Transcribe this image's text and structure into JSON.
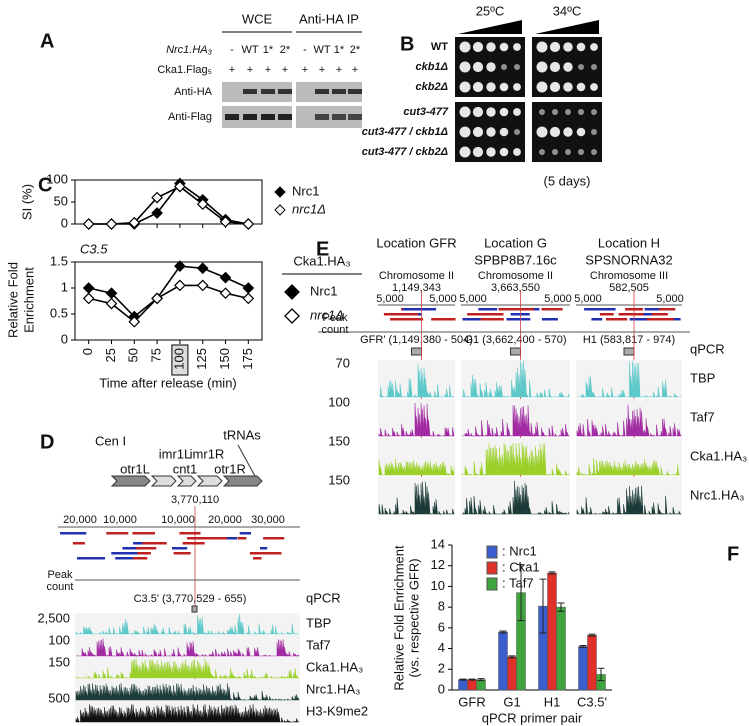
{
  "figure": {
    "A": {
      "label": "A",
      "headers": [
        "WCE",
        "Anti-HA IP"
      ],
      "row_labels": [
        "Nrc1.HA₃",
        "Cka1.Flag₅",
        "Anti-HA",
        "Anti-Flag"
      ],
      "nrc1_lanes": [
        "-",
        "WT",
        "1*",
        "2*",
        "-",
        "WT",
        "1*",
        "2*"
      ],
      "cka1_lanes": [
        "+",
        "+",
        "+",
        "+",
        "+",
        "+",
        "+",
        "+"
      ]
    },
    "B": {
      "label": "B",
      "temperatures": [
        "25ºC",
        "34ºC"
      ],
      "strains": [
        "WT",
        "ckb1Δ",
        "ckb2Δ",
        "cut3-477",
        "cut3-477 / ckb1Δ",
        "cut3-477 / ckb2Δ"
      ],
      "note": "(5 days)"
    },
    "C": {
      "label": "C"
    },
    "D": {
      "label": "D",
      "title": "Cen I",
      "elements": [
        "otr1L",
        "imr1L",
        "cnt1",
        "imr1R",
        "otr1R",
        "tRNAs"
      ],
      "position": "3,770,110",
      "scale": [
        "20,000",
        "10,000",
        "10,000",
        "20,000",
        "30,000"
      ],
      "peak_count": [
        "Peak",
        "count"
      ],
      "primer": "C3.5' (3,770,529 - 655)",
      "qpcr": "qPCR",
      "tracks": [
        "TBP",
        "Taf7",
        "Cka1.HA₃",
        "Nrc1.HA₃",
        "H3-K9me2"
      ],
      "track_max": [
        "2,500",
        "100",
        "150",
        "500"
      ]
    },
    "E": {
      "label": "E",
      "locations": [
        {
          "title": "Location GFR",
          "chromosome": "Chromosome II",
          "position": "1,149,343",
          "primer": "GFR' (1,149,380 - 504)"
        },
        {
          "title": "Location G",
          "gene": "SPBP8B7.16c",
          "chromosome": "Chromosome II",
          "position": "3,663,550",
          "primer": "G1 (3,662,400 - 570)"
        },
        {
          "title": "Location H",
          "gene": "SPSNORNA32",
          "chromosome": "Chromosome III",
          "position": "582,505",
          "primer": "H1 (583,817 - 974)"
        }
      ],
      "scale": "5,000",
      "peak_count": [
        "Peak",
        "count"
      ],
      "qpcr": "qPCR",
      "tracks": [
        "TBP",
        "Taf7",
        "Cka1.HA₃",
        "Nrc1.HA₃"
      ],
      "track_max": [
        "70",
        "100",
        "150",
        "150"
      ]
    },
    "F": {
      "label": "F"
    }
  },
  "chart_data": [
    {
      "type": "line",
      "y_label": "SI (%)",
      "x": [
        0,
        25,
        50,
        75,
        100,
        125,
        150,
        175
      ],
      "xlim": [
        -15,
        190
      ],
      "ylim": [
        0,
        100
      ],
      "yticks": [
        0,
        50,
        100
      ],
      "series": [
        {
          "name": "Nrc1",
          "color": "#000000",
          "marker": "filled",
          "values": [
            0,
            0,
            0,
            25,
            92,
            55,
            10,
            0
          ]
        },
        {
          "name": "nrc1Δ",
          "color": "#000000",
          "marker": "open",
          "values": [
            0,
            0,
            3,
            60,
            85,
            45,
            5,
            0
          ]
        }
      ]
    },
    {
      "type": "line",
      "subtitle": "C3.5",
      "y_label": [
        "Relative Fold",
        "Enrichment"
      ],
      "x_label": "Time after release (min)",
      "legend_title": "Cka1.HA₃",
      "x": [
        0,
        25,
        50,
        75,
        100,
        125,
        150,
        175
      ],
      "xlim": [
        -15,
        190
      ],
      "xticks": [
        0,
        25,
        50,
        75,
        100,
        125,
        150,
        175
      ],
      "highlighted_x": 100,
      "ylim": [
        0,
        1.5
      ],
      "yticks": [
        0,
        0.5,
        1,
        1.5
      ],
      "series": [
        {
          "name": "Nrc1",
          "color": "#000000",
          "marker": "filled",
          "values": [
            1.0,
            0.9,
            0.45,
            0.8,
            1.42,
            1.38,
            1.2,
            1.0
          ]
        },
        {
          "name": "nrc1Δ",
          "color": "#000000",
          "marker": "open",
          "values": [
            0.8,
            0.7,
            0.35,
            0.8,
            1.05,
            1.05,
            0.9,
            0.8
          ]
        }
      ]
    },
    {
      "type": "bar",
      "y_label": [
        "Relative Fold Enrichment",
        "(vs. respective GFR)"
      ],
      "x_label": "qPCR primer pair",
      "categories": [
        "GFR",
        "G1",
        "H1",
        "C3.5'"
      ],
      "ylim": [
        0,
        14
      ],
      "yticks": [
        0,
        2,
        4,
        6,
        8,
        10,
        12,
        14
      ],
      "series": [
        {
          "name": ": Nrc1",
          "color": "#3a5fcd",
          "values": [
            1,
            5.6,
            8.1,
            4.2
          ],
          "errors": [
            0.05,
            0.1,
            2.6,
            0.1
          ]
        },
        {
          "name": ": Cka1",
          "color": "#e0302a",
          "values": [
            1,
            3.2,
            11.3,
            5.3
          ],
          "errors": [
            0.05,
            0.1,
            0.1,
            0.1
          ]
        },
        {
          "name": ": Taf7",
          "color": "#3fa63f",
          "values": [
            1,
            9.4,
            8.0,
            1.5
          ],
          "errors": [
            0.1,
            2.7,
            0.4,
            0.6
          ]
        }
      ]
    }
  ]
}
